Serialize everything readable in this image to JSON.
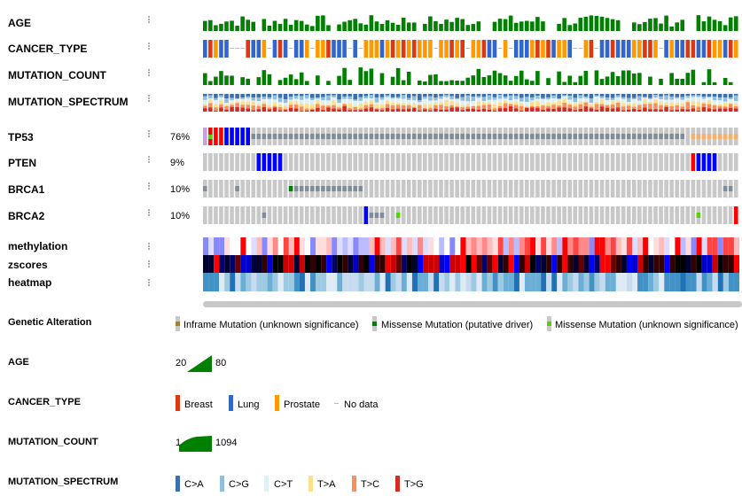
{
  "tracks": {
    "clinical": [
      {
        "label": "AGE"
      },
      {
        "label": "CANCER_TYPE"
      },
      {
        "label": "MUTATION_COUNT"
      },
      {
        "label": "MUTATION_SPECTRUM"
      }
    ],
    "genes": [
      {
        "label": "TP53",
        "percent": "76%"
      },
      {
        "label": "PTEN",
        "percent": "9%"
      },
      {
        "label": "BRCA1",
        "percent": "10%"
      },
      {
        "label": "BRCA2",
        "percent": "10%"
      }
    ],
    "heatmap": [
      {
        "label": "methylation"
      },
      {
        "label": "zscores"
      },
      {
        "label": "heatmap"
      }
    ]
  },
  "legend": {
    "genetic_alteration": {
      "title": "Genetic Alteration",
      "items": [
        {
          "label": "Inframe Mutation (unknown significance)",
          "color": "#a68028"
        },
        {
          "label": "Missense Mutation (putative driver)",
          "color": "#008000"
        },
        {
          "label": "Missense Mutation (unknown significance)",
          "color": "#53d400"
        }
      ]
    },
    "age": {
      "title": "AGE",
      "min": "20",
      "max": "80",
      "color": "#008000"
    },
    "cancer_type": {
      "title": "CANCER_TYPE",
      "items": [
        {
          "label": "Breast",
          "color": "#dc3912"
        },
        {
          "label": "Lung",
          "color": "#3366cc"
        },
        {
          "label": "Prostate",
          "color": "#ff9900"
        },
        {
          "label": "No data",
          "color": "#e0e0e0"
        }
      ]
    },
    "mutation_count": {
      "title": "MUTATION_COUNT",
      "min": "1",
      "max": "1094",
      "color": "#008000"
    },
    "mutation_spectrum": {
      "title": "MUTATION_SPECTRUM",
      "items": [
        {
          "label": "C>A",
          "color": "#3d6eb1"
        },
        {
          "label": "C>G",
          "color": "#8ebfdc"
        },
        {
          "label": "C>T",
          "color": "#dff1f8"
        },
        {
          "label": "T>A",
          "color": "#fce08e"
        },
        {
          "label": "T>C",
          "color": "#f78f5e"
        },
        {
          "label": "T>G",
          "color": "#d62b23"
        }
      ]
    }
  },
  "colors": {
    "gray_cell": "#c8c8c8",
    "vus_missense": "#808c9a",
    "deep_deletion": "#0000ff",
    "amplification": "#ff0000",
    "age_bar": "#008000"
  }
}
